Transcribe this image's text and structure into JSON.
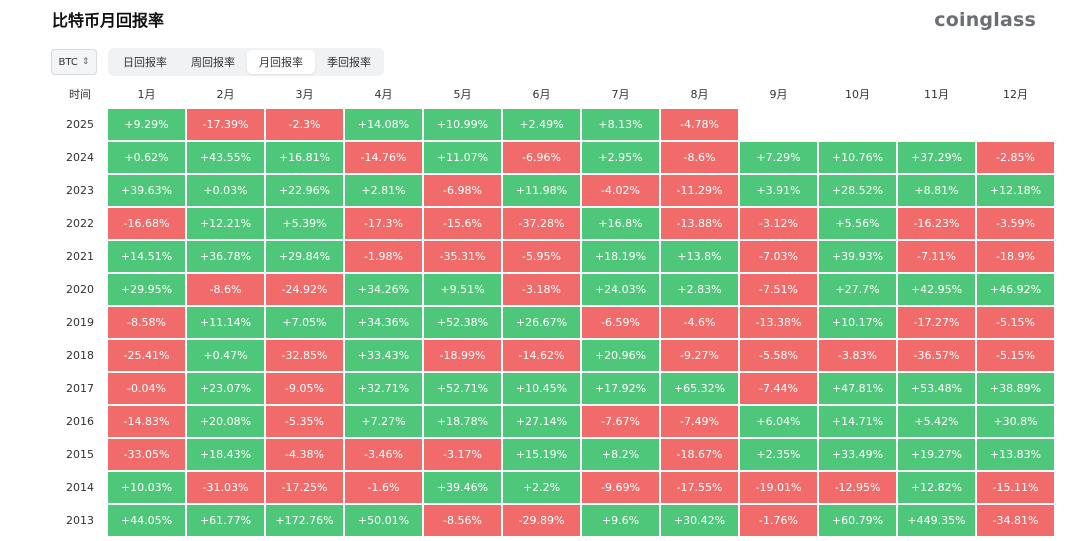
{
  "title": "比特币月回报率",
  "brand": "coinglass",
  "coin_select": {
    "value": "BTC",
    "chevron": "⌃⌄"
  },
  "tabs": [
    "日回报率",
    "周回报率",
    "月回报率",
    "季回报率"
  ],
  "active_tab": 2,
  "colors": {
    "positive": "#4fc77a",
    "negative": "#f26b6b"
  },
  "table": {
    "year_header": "时间",
    "months": [
      "1月",
      "2月",
      "3月",
      "4月",
      "5月",
      "6月",
      "7月",
      "8月",
      "9月",
      "10月",
      "11月",
      "12月"
    ],
    "rows": [
      {
        "year": "2025",
        "values": [
          "+9.29%",
          "-17.39%",
          "-2.3%",
          "+14.08%",
          "+10.99%",
          "+2.49%",
          "+8.13%",
          "-4.78%",
          "",
          "",
          "",
          ""
        ]
      },
      {
        "year": "2024",
        "values": [
          "+0.62%",
          "+43.55%",
          "+16.81%",
          "-14.76%",
          "+11.07%",
          "-6.96%",
          "+2.95%",
          "-8.6%",
          "+7.29%",
          "+10.76%",
          "+37.29%",
          "-2.85%"
        ]
      },
      {
        "year": "2023",
        "values": [
          "+39.63%",
          "+0.03%",
          "+22.96%",
          "+2.81%",
          "-6.98%",
          "+11.98%",
          "-4.02%",
          "-11.29%",
          "+3.91%",
          "+28.52%",
          "+8.81%",
          "+12.18%"
        ]
      },
      {
        "year": "2022",
        "values": [
          "-16.68%",
          "+12.21%",
          "+5.39%",
          "-17.3%",
          "-15.6%",
          "-37.28%",
          "+16.8%",
          "-13.88%",
          "-3.12%",
          "+5.56%",
          "-16.23%",
          "-3.59%"
        ]
      },
      {
        "year": "2021",
        "values": [
          "+14.51%",
          "+36.78%",
          "+29.84%",
          "-1.98%",
          "-35.31%",
          "-5.95%",
          "+18.19%",
          "+13.8%",
          "-7.03%",
          "+39.93%",
          "-7.11%",
          "-18.9%"
        ]
      },
      {
        "year": "2020",
        "values": [
          "+29.95%",
          "-8.6%",
          "-24.92%",
          "+34.26%",
          "+9.51%",
          "-3.18%",
          "+24.03%",
          "+2.83%",
          "-7.51%",
          "+27.7%",
          "+42.95%",
          "+46.92%"
        ]
      },
      {
        "year": "2019",
        "values": [
          "-8.58%",
          "+11.14%",
          "+7.05%",
          "+34.36%",
          "+52.38%",
          "+26.67%",
          "-6.59%",
          "-4.6%",
          "-13.38%",
          "+10.17%",
          "-17.27%",
          "-5.15%"
        ]
      },
      {
        "year": "2018",
        "values": [
          "-25.41%",
          "+0.47%",
          "-32.85%",
          "+33.43%",
          "-18.99%",
          "-14.62%",
          "+20.96%",
          "-9.27%",
          "-5.58%",
          "-3.83%",
          "-36.57%",
          "-5.15%"
        ]
      },
      {
        "year": "2017",
        "values": [
          "-0.04%",
          "+23.07%",
          "-9.05%",
          "+32.71%",
          "+52.71%",
          "+10.45%",
          "+17.92%",
          "+65.32%",
          "-7.44%",
          "+47.81%",
          "+53.48%",
          "+38.89%"
        ]
      },
      {
        "year": "2016",
        "values": [
          "-14.83%",
          "+20.08%",
          "-5.35%",
          "+7.27%",
          "+18.78%",
          "+27.14%",
          "-7.67%",
          "-7.49%",
          "+6.04%",
          "+14.71%",
          "+5.42%",
          "+30.8%"
        ]
      },
      {
        "year": "2015",
        "values": [
          "-33.05%",
          "+18.43%",
          "-4.38%",
          "-3.46%",
          "-3.17%",
          "+15.19%",
          "+8.2%",
          "-18.67%",
          "+2.35%",
          "+33.49%",
          "+19.27%",
          "+13.83%"
        ]
      },
      {
        "year": "2014",
        "values": [
          "+10.03%",
          "-31.03%",
          "-17.25%",
          "-1.6%",
          "+39.46%",
          "+2.2%",
          "-9.69%",
          "-17.55%",
          "-19.01%",
          "-12.95%",
          "+12.82%",
          "-15.11%"
        ]
      },
      {
        "year": "2013",
        "values": [
          "+44.05%",
          "+61.77%",
          "+172.76%",
          "+50.01%",
          "-8.56%",
          "-29.89%",
          "+9.6%",
          "+30.42%",
          "-1.76%",
          "+60.79%",
          "+449.35%",
          "-34.81%"
        ]
      }
    ]
  }
}
